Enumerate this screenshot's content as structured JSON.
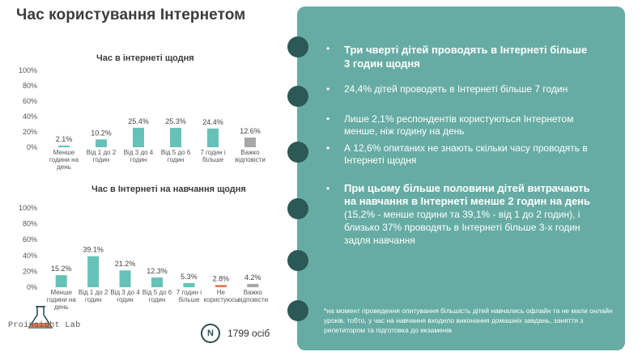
{
  "page": {
    "title": "Час користування Інтернетом"
  },
  "chart_data": [
    {
      "type": "bar",
      "title": "Час в інтернеті щодня",
      "y_ticks": [
        "100%",
        "80%",
        "60%",
        "40%",
        "20%",
        "0%"
      ],
      "ylim": [
        0,
        100
      ],
      "grid": false,
      "categories": [
        [
          "Менше",
          "години на",
          "день"
        ],
        [
          "Від 1 до 2",
          "годин"
        ],
        [
          "Від 3 до 4",
          "годин"
        ],
        [
          "Від 5 до 6",
          "годин"
        ],
        [
          "7 годин і",
          "більше"
        ],
        [
          "Важко",
          "відповісти"
        ]
      ],
      "values": [
        2.1,
        10.2,
        25.4,
        25.3,
        24.4,
        12.6
      ],
      "value_labels": [
        "2.1%",
        "10.2%",
        "25.4%",
        "25.3%",
        "24.4%",
        "12.6%"
      ],
      "colors": [
        "#66c2b8",
        "#66c2b8",
        "#66c2b8",
        "#66c2b8",
        "#66c2b8",
        "#a7a7a7"
      ]
    },
    {
      "type": "bar",
      "title": "Час в Інтернеті на навчання щодня",
      "y_ticks": [
        "100%",
        "80%",
        "60%",
        "40%",
        "20%",
        "0%"
      ],
      "ylim": [
        0,
        100
      ],
      "grid": false,
      "categories": [
        [
          "Менше",
          "години на",
          "день"
        ],
        [
          "Від 1 до 2",
          "годин"
        ],
        [
          "Від 3 до 4",
          "годин"
        ],
        [
          "Від 5 до 6",
          "годин"
        ],
        [
          "7 годин і",
          "більше"
        ],
        [
          "Не",
          "користуюсь"
        ],
        [
          "Важко",
          "відповісти"
        ]
      ],
      "values": [
        15.2,
        39.1,
        21.2,
        12.3,
        5.3,
        2.8,
        4.2
      ],
      "value_labels": [
        "15.2%",
        "39.1%",
        "21.2%",
        "12.3%",
        "5.3%",
        "2.8%",
        "4.2%"
      ],
      "colors": [
        "#66c2b8",
        "#66c2b8",
        "#66c2b8",
        "#66c2b8",
        "#66c2b8",
        "#e07a4f",
        "#a7a7a7"
      ]
    }
  ],
  "logo": {
    "text": "Proinsight Lab",
    "icon": "flask-icon"
  },
  "sample": {
    "badge": "N",
    "count": "1799 осіб"
  },
  "panel": {
    "bullet_mark": "•",
    "b1": {
      "bold": "Три чверті дітей проводять в Інтернеті більше 3 годин щодня"
    },
    "b2": {
      "text": "24,4% дітей проводять в Інтернеті більше 7 годин"
    },
    "b3": {
      "text": "Лише 2,1% респондентів користуються Інтернетом менше, ніж годину на день"
    },
    "b4": {
      "text": "А 12,6% опитаних не знають скільки часу проводять в Інтернеті щодня"
    },
    "b5": {
      "bold": "При цьому більше половини дітей витрачають на навчання в Інтернеті менше 2 годин на день",
      "rest": " (15,2% - менше години та 39,1% - від 1 до 2 годин), і близько 37% проводять в Інтернеті більше 3-х годин задля навчання"
    },
    "footnote": "*на момент проведення опитування більшість дітей навчались офлайн та не мали онлайн уроків, тобто, у час на навчання входило виконання домашніх завдань, заняття з репетитором та підготовка до екзаменів",
    "dot_color": "#2c5955",
    "panel_color": "#66aca4"
  }
}
